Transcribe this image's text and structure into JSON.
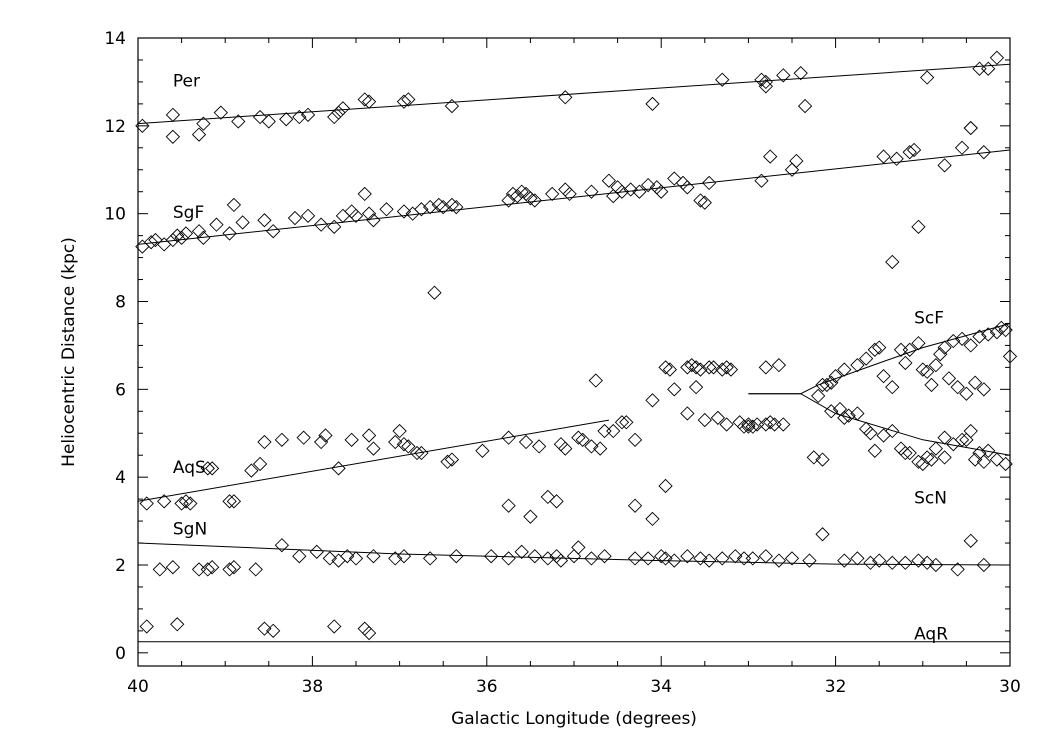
{
  "chart_data": {
    "type": "scatter",
    "title": "",
    "xlabel": "Galactic Longitude (degrees)",
    "ylabel": "Heliocentric Distance (kpc)",
    "xlim": [
      40,
      30
    ],
    "ylim": [
      -0.3,
      14
    ],
    "x_reversed": true,
    "xticks": [
      40,
      38,
      36,
      34,
      32,
      30
    ],
    "yticks": [
      0,
      2,
      4,
      6,
      8,
      10,
      12,
      14
    ],
    "grid": false,
    "marker": "diamond-open",
    "arm_labels": [
      {
        "text": "Per",
        "x": 39.6,
        "y": 12.9
      },
      {
        "text": "SgF",
        "x": 39.6,
        "y": 9.9
      },
      {
        "text": "ScF",
        "x": 31.1,
        "y": 7.5
      },
      {
        "text": "AqS",
        "x": 39.6,
        "y": 4.1
      },
      {
        "text": "ScN",
        "x": 31.1,
        "y": 3.4
      },
      {
        "text": "SgN",
        "x": 39.6,
        "y": 2.7
      },
      {
        "text": "AqR",
        "x": 31.1,
        "y": 0.3
      }
    ],
    "arm_lines": [
      {
        "label": "Per",
        "points": [
          [
            40,
            12.05
          ],
          [
            30,
            13.4
          ]
        ]
      },
      {
        "label": "SgF",
        "points": [
          [
            40,
            9.3
          ],
          [
            30,
            11.45
          ]
        ]
      },
      {
        "label": "ScF",
        "points": [
          [
            33,
            5.9
          ],
          [
            32.4,
            5.9
          ],
          [
            32.2,
            6.1
          ],
          [
            31.5,
            6.6
          ],
          [
            31,
            6.95
          ],
          [
            30,
            7.5
          ]
        ]
      },
      {
        "label": "ScN",
        "points": [
          [
            33,
            5.9
          ],
          [
            32.4,
            5.9
          ],
          [
            32,
            5.45
          ],
          [
            31,
            4.85
          ],
          [
            30,
            4.5
          ]
        ]
      },
      {
        "label": "AqS",
        "points": [
          [
            40,
            3.45
          ],
          [
            34.6,
            5.3
          ]
        ]
      },
      {
        "label": "SgN",
        "points": [
          [
            40,
            2.5
          ],
          [
            37,
            2.25
          ],
          [
            34,
            2.1
          ],
          [
            32,
            2.02
          ],
          [
            30,
            2.0
          ]
        ]
      },
      {
        "label": "AqR",
        "points": [
          [
            40,
            0.25
          ],
          [
            30,
            0.25
          ]
        ]
      }
    ],
    "series": [
      {
        "x": [
          39.95,
          39.6,
          39.6,
          39.3,
          39.25,
          39.05,
          38.85,
          38.6,
          38.5,
          38.3,
          38.15,
          38.05,
          37.75,
          37.7,
          37.65,
          37.4,
          37.35,
          36.95,
          36.9,
          36.4,
          35.1,
          34.1,
          33.3,
          32.85,
          32.8,
          32.8,
          32.6,
          32.4,
          32.35,
          30.95,
          30.45,
          30.35,
          30.25,
          30.15
        ],
        "y": [
          12.0,
          11.75,
          12.25,
          11.8,
          12.05,
          12.3,
          12.1,
          12.2,
          12.1,
          12.15,
          12.2,
          12.25,
          12.2,
          12.3,
          12.4,
          12.6,
          12.55,
          12.55,
          12.6,
          12.45,
          12.65,
          12.5,
          13.05,
          13.05,
          12.9,
          13.0,
          13.15,
          13.2,
          12.45,
          13.1,
          11.95,
          13.3,
          13.3,
          13.55
        ]
      },
      {
        "x": [
          39.95,
          39.85,
          39.8,
          39.7,
          39.6,
          39.55,
          39.5,
          39.45,
          39.3,
          39.25,
          39.1,
          38.95,
          38.9,
          38.8,
          38.55,
          38.45,
          38.2,
          38.05,
          37.9,
          37.75,
          37.65,
          37.55,
          37.5,
          37.4,
          37.35,
          37.3,
          37.15,
          36.95,
          36.85,
          36.75,
          36.65,
          36.55,
          36.5,
          36.4,
          36.35,
          35.75,
          35.7,
          35.65,
          35.6,
          35.55,
          35.5,
          35.45,
          35.25,
          35.1,
          35.05,
          34.8,
          34.6,
          34.55,
          34.5,
          34.45,
          34.35,
          34.25,
          34.15,
          34.05,
          34.0,
          33.85,
          33.75,
          33.7,
          33.55,
          33.5,
          33.45,
          32.85,
          32.75,
          32.5,
          32.45,
          31.45,
          31.3,
          31.15,
          31.1,
          30.75,
          30.55,
          30.45,
          30.3
        ],
        "y": [
          9.25,
          9.35,
          9.4,
          9.3,
          9.4,
          9.5,
          9.45,
          9.55,
          9.6,
          9.45,
          9.75,
          9.55,
          10.2,
          9.8,
          9.85,
          9.6,
          9.9,
          9.95,
          9.75,
          9.7,
          9.95,
          10.05,
          9.95,
          10.45,
          10.0,
          9.85,
          10.1,
          10.05,
          10.0,
          10.1,
          10.15,
          10.2,
          10.15,
          10.2,
          10.15,
          10.3,
          10.45,
          10.4,
          10.5,
          10.45,
          10.35,
          10.3,
          10.45,
          10.55,
          10.45,
          10.5,
          10.75,
          10.4,
          10.6,
          10.5,
          10.55,
          10.5,
          10.65,
          10.6,
          10.5,
          10.8,
          10.7,
          10.6,
          10.3,
          10.25,
          10.7,
          10.75,
          11.3,
          11.0,
          11.2,
          11.3,
          11.25,
          11.4,
          11.45,
          11.1,
          11.5,
          11.95,
          11.4
        ]
      },
      {
        "x": [
          36.6,
          31.35,
          31.05,
          34.75,
          34.65,
          33.7,
          34.1,
          36.75,
          36.45,
          35.75,
          35.5,
          35.3,
          35.2,
          34.3,
          34.1,
          33.95
        ],
        "y": [
          8.2,
          8.9,
          9.7,
          6.2,
          5.05,
          5.45,
          5.75,
          4.55,
          4.35,
          3.35,
          3.1,
          3.55,
          3.45,
          3.35,
          3.05,
          3.8
        ]
      },
      {
        "x": [
          33.95,
          33.9,
          33.7,
          33.65,
          33.6,
          33.55,
          33.45,
          33.4,
          33.3,
          33.25,
          33.2,
          33.05,
          33.0,
          32.95,
          32.8,
          32.75,
          32.7,
          32.6,
          33.85,
          33.6,
          33.5,
          33.35,
          33.25,
          33.1,
          33.0,
          32.9,
          32.8,
          32.65
        ],
        "y": [
          6.5,
          6.45,
          6.5,
          6.55,
          6.5,
          6.45,
          6.5,
          6.5,
          6.45,
          6.5,
          6.45,
          5.15,
          5.2,
          5.15,
          5.2,
          5.25,
          5.2,
          5.2,
          6.0,
          6.05,
          5.3,
          5.35,
          5.2,
          5.25,
          5.15,
          5.2,
          6.5,
          6.55
        ]
      },
      {
        "x": [
          32.2,
          32.1,
          32.0,
          31.9,
          31.75,
          31.65,
          31.55,
          31.5,
          31.45,
          31.35,
          31.25,
          31.15,
          31.05,
          30.95,
          30.85,
          30.8,
          30.75,
          30.65,
          30.55,
          30.45,
          30.35,
          30.25,
          30.15,
          30.1,
          30.05,
          30.0,
          31.2,
          31.0,
          30.9,
          30.7,
          30.6,
          30.5,
          30.4,
          30.3
        ],
        "y": [
          5.85,
          6.1,
          6.3,
          6.45,
          6.55,
          6.7,
          6.9,
          6.95,
          6.3,
          6.05,
          6.9,
          6.9,
          7.05,
          6.4,
          6.55,
          6.8,
          6.95,
          7.1,
          7.15,
          7.0,
          7.2,
          7.25,
          7.3,
          7.4,
          7.35,
          6.75,
          6.6,
          6.45,
          6.1,
          6.25,
          6.05,
          5.9,
          6.15,
          6.0
        ]
      },
      {
        "x": [
          32.25,
          32.15,
          32.05,
          31.95,
          31.85,
          31.75,
          31.65,
          31.55,
          31.45,
          31.35,
          31.25,
          31.15,
          31.05,
          30.95,
          30.85,
          30.75,
          30.65,
          30.55,
          30.45,
          30.35,
          30.25,
          30.15,
          30.05,
          32.15,
          32.05,
          31.9,
          31.6,
          31.2,
          31.0,
          30.9,
          30.75,
          30.5,
          30.4,
          30.3
        ],
        "y": [
          4.45,
          4.4,
          5.5,
          5.55,
          5.4,
          5.45,
          5.1,
          4.6,
          4.95,
          5.05,
          4.65,
          4.55,
          4.35,
          4.45,
          4.65,
          4.9,
          4.75,
          4.85,
          5.05,
          4.55,
          4.6,
          4.4,
          4.3,
          6.1,
          6.15,
          5.35,
          5.0,
          4.55,
          4.3,
          4.4,
          4.45,
          4.85,
          4.4,
          4.35
        ]
      },
      {
        "x": [
          39.9,
          39.7,
          39.5,
          39.45,
          39.4,
          39.2,
          39.15,
          38.95,
          38.9,
          38.7,
          38.6,
          38.55,
          38.35,
          38.1,
          37.9,
          37.85,
          37.7,
          37.55,
          37.35,
          37.3,
          37.05,
          37.0,
          36.95,
          36.9,
          36.8,
          36.4,
          36.05,
          35.75,
          35.55,
          35.4,
          35.15,
          35.1,
          34.95,
          34.9,
          34.8,
          34.7,
          34.55,
          34.45,
          34.4,
          34.3
        ],
        "y": [
          3.4,
          3.45,
          3.4,
          3.45,
          3.4,
          4.2,
          4.2,
          3.45,
          3.45,
          4.15,
          4.3,
          4.8,
          4.85,
          4.9,
          4.8,
          4.95,
          4.2,
          4.85,
          4.95,
          4.65,
          4.8,
          5.05,
          4.75,
          4.7,
          4.55,
          4.4,
          4.6,
          4.9,
          4.8,
          4.7,
          4.75,
          4.65,
          4.9,
          4.85,
          4.7,
          4.65,
          5.05,
          5.25,
          5.25,
          4.85
        ]
      },
      {
        "x": [
          39.9,
          39.75,
          39.6,
          39.55,
          39.3,
          39.2,
          39.15,
          38.95,
          38.9,
          38.65,
          38.55,
          38.35,
          38.15,
          37.95,
          37.8,
          37.7,
          37.6,
          37.5,
          37.4,
          37.3,
          37.05,
          36.95,
          36.65,
          36.35,
          35.95,
          35.75,
          35.6,
          35.45,
          35.3,
          35.2,
          35.15,
          35.0,
          34.95,
          34.8,
          34.65,
          34.3,
          34.15,
          34.0,
          33.95,
          33.85,
          33.7,
          33.55,
          33.45,
          33.3,
          33.15,
          33.05,
          32.95,
          32.8,
          32.65,
          32.5,
          32.3,
          32.15,
          31.9,
          31.75,
          31.6,
          31.5,
          31.35,
          31.2,
          31.05,
          30.95,
          30.85,
          30.6,
          30.45,
          30.3
        ],
        "y": [
          0.6,
          1.9,
          1.95,
          0.65,
          1.9,
          1.9,
          1.95,
          1.9,
          1.95,
          1.9,
          0.55,
          2.45,
          2.2,
          2.3,
          2.15,
          2.1,
          2.2,
          2.15,
          0.55,
          2.2,
          2.15,
          2.2,
          2.15,
          2.2,
          2.2,
          2.15,
          2.3,
          2.2,
          2.15,
          2.2,
          2.1,
          2.2,
          2.4,
          2.15,
          2.2,
          2.15,
          2.15,
          2.2,
          2.15,
          2.1,
          2.2,
          2.15,
          2.1,
          2.15,
          2.2,
          2.15,
          2.15,
          2.2,
          2.1,
          2.15,
          2.1,
          2.7,
          2.1,
          2.15,
          2.05,
          2.1,
          2.05,
          2.05,
          2.1,
          2.05,
          2.0,
          1.9,
          2.55,
          2.0
        ]
      },
      {
        "x": [
          38.45,
          37.75,
          37.35
        ],
        "y": [
          0.5,
          0.6,
          0.45
        ]
      }
    ]
  }
}
